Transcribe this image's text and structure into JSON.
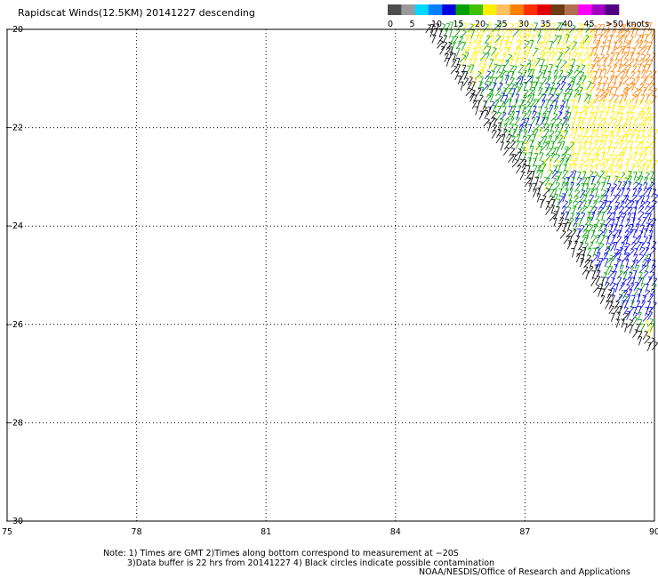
{
  "title": "Rapidscat Winds(12.5KM) 20141227 descending",
  "legend": {
    "labels": [
      "0",
      "5",
      "10",
      "15",
      "20",
      "25",
      "30",
      "35",
      "40",
      "45",
      ">50 knots"
    ],
    "colors": [
      "#4d4d4d",
      "#9a9a9a",
      "#00d8ff",
      "#0080ff",
      "#0000dd",
      "#00a000",
      "#40c000",
      "#ffee00",
      "#ffc060",
      "#ff8000",
      "#ff3000",
      "#e00000",
      "#6b3b12",
      "#b07050",
      "#ff00ff",
      "#a000c0",
      "#500080"
    ]
  },
  "notes": {
    "line1": "Note: 1) Times are GMT 2)Times along bottom correspond to measurement at −20S",
    "line2": "3)Data buffer is 22 hrs from 20141227 4) Black circles indicate possible contamination",
    "credit": "NOAA/NESDIS/Office of Research and Applications"
  },
  "chart_data": {
    "type": "scatter",
    "title": "Rapidscat Winds(12.5KM) 20141227 descending",
    "xlabel": "",
    "ylabel": "",
    "xlim": [
      75,
      90
    ],
    "ylim": [
      -30,
      -20
    ],
    "grid": true,
    "x_ticks": [
      "75",
      "78",
      "81",
      "84",
      "87",
      "90"
    ],
    "y_ticks": [
      "-20",
      "-22",
      "-24",
      "-26",
      "-28",
      "-30"
    ],
    "swath": {
      "description_units": "degrees longitude / latitude",
      "edge": [
        [
          84.6,
          -20.0
        ],
        [
          86.0,
          -22.0
        ],
        [
          87.6,
          -24.0
        ],
        [
          89.0,
          -26.0
        ],
        [
          90.0,
          -26.7
        ]
      ],
      "right_edge_lon": 90.0
    },
    "wind_regions": [
      {
        "lat": [
          -20.0,
          -20.8
        ],
        "lon": [
          85.5,
          88.5
        ],
        "speed_knots": 20
      },
      {
        "lat": [
          -20.0,
          -21.8
        ],
        "lon": [
          88.5,
          90.0
        ],
        "speed_knots": 30
      },
      {
        "lat": [
          -21.0,
          -22.2
        ],
        "lon": [
          86.0,
          88.0
        ],
        "speed_knots": 15
      },
      {
        "lat": [
          -21.5,
          -23.0
        ],
        "lon": [
          88.0,
          90.0
        ],
        "speed_knots": 22
      },
      {
        "lat": [
          -23.0,
          -24.5
        ],
        "lon": [
          87.5,
          88.8
        ],
        "speed_knots": 15
      },
      {
        "lat": [
          -23.2,
          -24.8
        ],
        "lon": [
          88.8,
          90.0
        ],
        "speed_knots": 12
      },
      {
        "lat": [
          -24.5,
          -26.0
        ],
        "lon": [
          88.5,
          90.0
        ],
        "speed_knots": 13
      }
    ],
    "direction_deg": 60
  }
}
